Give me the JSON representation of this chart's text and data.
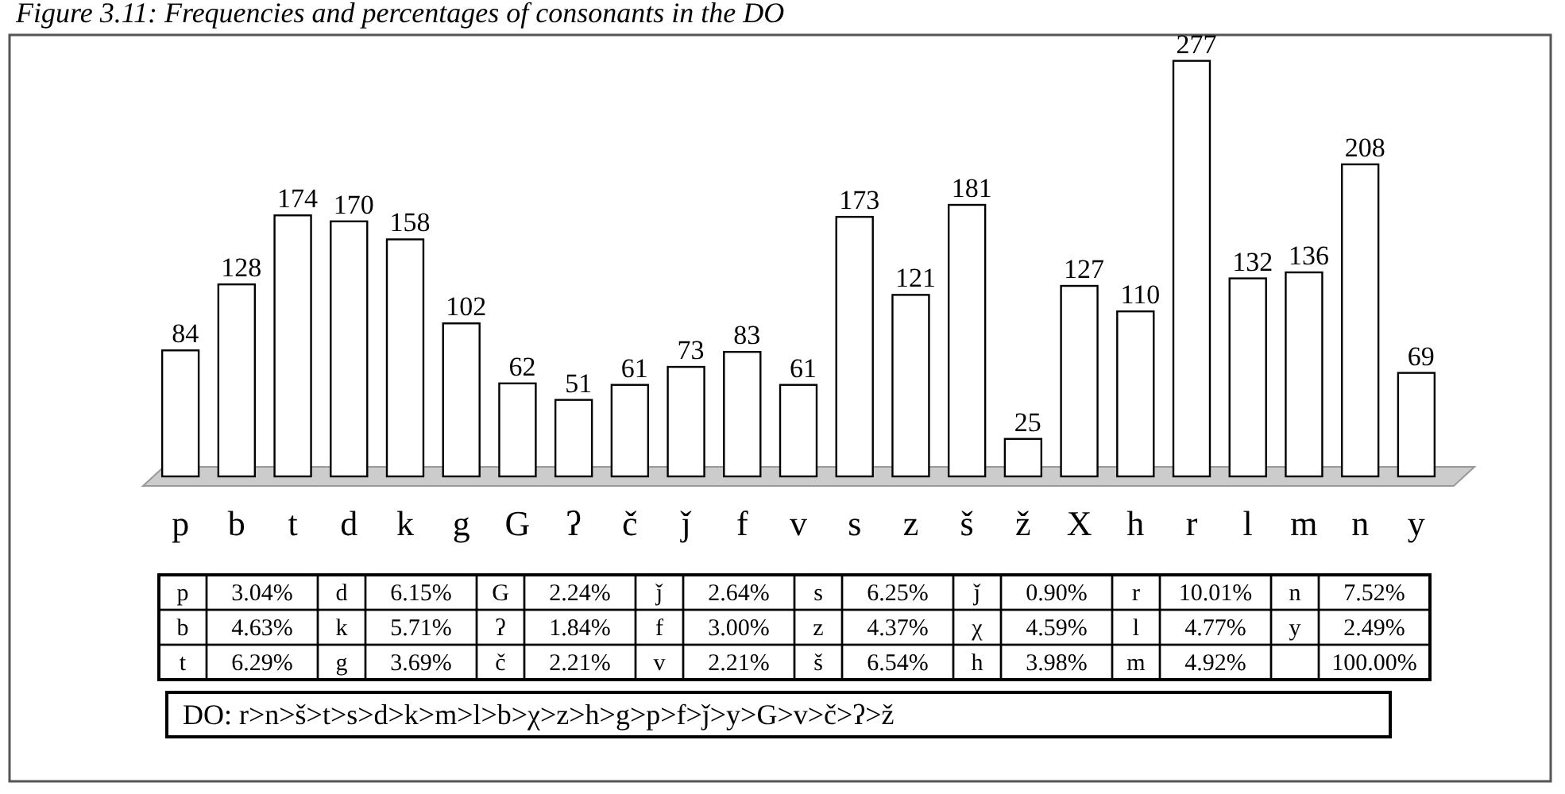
{
  "chart_data": {
    "type": "bar",
    "title": "Figure 3.11: Frequencies and percentages of consonants in the DO",
    "categories": [
      "p",
      "b",
      "t",
      "d",
      "k",
      "g",
      "G",
      "ʔ",
      "č",
      "ǰ",
      "f",
      "v",
      "s",
      "z",
      "š",
      "ž",
      "X",
      "h",
      "r",
      "l",
      "m",
      "n",
      "y"
    ],
    "values": [
      84,
      128,
      174,
      170,
      158,
      102,
      62,
      51,
      61,
      73,
      83,
      61,
      173,
      121,
      181,
      25,
      127,
      110,
      277,
      132,
      136,
      208,
      69
    ],
    "color": "#ffffff",
    "data_labels": true,
    "grid": false,
    "annotations": [
      "p",
      "3.04%",
      "d",
      "6.15%",
      "G",
      "2.24%",
      "ǰ",
      "2.64%",
      "s",
      "6.25%",
      "ǰ",
      "0.90%",
      "r",
      "10.01%",
      "n",
      "7.52%",
      "b",
      "4.63%",
      "k",
      "5.71%",
      "ʔ",
      "1.84%",
      "f",
      "3.00%",
      "z",
      "4.37%",
      "χ",
      "4.59%",
      "l",
      "4.77%",
      "y",
      "2.49%",
      "t",
      "6.29%",
      "g",
      "3.69%",
      "č",
      "2.21%",
      "v",
      "2.21%",
      "š",
      "6.54%",
      "h",
      "3.98%",
      "m",
      "4.92%",
      null,
      "100.00%",
      "DO: r>n>š>t>s>d>k>m>l>b>χ>z>h>g>p>f>ǰ>y>G>v>č>ʔ>ž"
    ]
  }
}
